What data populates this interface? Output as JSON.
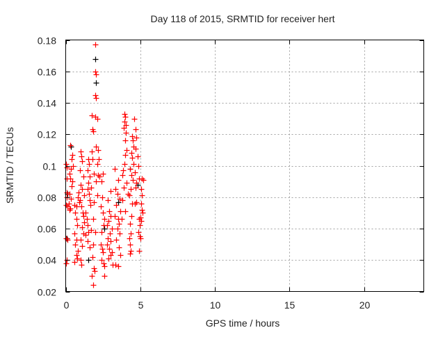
{
  "chart_data": {
    "type": "scatter",
    "title": "Day 118 of 2015, SRMTID for receiver hert",
    "xlabel": "GPS time / hours",
    "ylabel": "SRMTID / TECUs",
    "xlim": [
      0,
      24
    ],
    "ylim": [
      0.02,
      0.18
    ],
    "xticks": [
      0,
      5,
      10,
      15,
      20
    ],
    "xtick_labels": [
      "0",
      "5",
      "10",
      "15",
      "20"
    ],
    "yticks": [
      0.02,
      0.04,
      0.06,
      0.08,
      0.1,
      0.12,
      0.14,
      0.16,
      0.18
    ],
    "ytick_labels": [
      "0.02",
      "0.04",
      "0.06",
      "0.08",
      "0.1",
      "0.12",
      "0.14",
      "0.16",
      "0.18"
    ],
    "grid": true,
    "marker": "+",
    "series": [
      {
        "name": "black",
        "color": "#000000",
        "points": [
          [
            2.0,
            0.168
          ],
          [
            2.05,
            0.153
          ],
          [
            0.35,
            0.112
          ],
          [
            0.1,
            0.082
          ],
          [
            1.5,
            0.04
          ],
          [
            3.5,
            0.077
          ],
          [
            4.3,
            0.098
          ],
          [
            0.05,
            0.054
          ],
          [
            2.6,
            0.06
          ],
          [
            4.8,
            0.088
          ]
        ]
      },
      {
        "name": "red",
        "color": "#ff0000",
        "points": [
          [
            0.02,
            0.101
          ],
          [
            0.05,
            0.092
          ],
          [
            0.08,
            0.083
          ],
          [
            0.03,
            0.075
          ],
          [
            0.1,
            0.074
          ],
          [
            0.02,
            0.054
          ],
          [
            0.1,
            0.053
          ],
          [
            0.05,
            0.04
          ],
          [
            0.03,
            0.038
          ],
          [
            0.07,
            0.08
          ],
          [
            0.09,
            0.099
          ],
          [
            0.3,
            0.113
          ],
          [
            0.45,
            0.107
          ],
          [
            0.4,
            0.104
          ],
          [
            0.5,
            0.1
          ],
          [
            0.35,
            0.098
          ],
          [
            0.25,
            0.095
          ],
          [
            0.3,
            0.092
          ],
          [
            0.45,
            0.09
          ],
          [
            0.4,
            0.087
          ],
          [
            0.25,
            0.082
          ],
          [
            0.35,
            0.079
          ],
          [
            0.2,
            0.076
          ],
          [
            0.3,
            0.073
          ],
          [
            0.25,
            0.072
          ],
          [
            0.6,
            0.075
          ],
          [
            0.65,
            0.07
          ],
          [
            0.7,
            0.066
          ],
          [
            0.75,
            0.062
          ],
          [
            0.6,
            0.057
          ],
          [
            0.7,
            0.053
          ],
          [
            0.65,
            0.05
          ],
          [
            0.8,
            0.046
          ],
          [
            0.7,
            0.043
          ],
          [
            0.75,
            0.041
          ],
          [
            0.6,
            0.039
          ],
          [
            0.85,
            0.083
          ],
          [
            0.8,
            0.08
          ],
          [
            0.9,
            0.077
          ],
          [
            0.7,
            0.074
          ],
          [
            1.0,
            0.109
          ],
          [
            1.05,
            0.106
          ],
          [
            1.1,
            0.103
          ],
          [
            0.95,
            0.097
          ],
          [
            1.2,
            0.093
          ],
          [
            1.0,
            0.088
          ],
          [
            1.1,
            0.085
          ],
          [
            1.25,
            0.081
          ],
          [
            0.95,
            0.078
          ],
          [
            1.05,
            0.074
          ],
          [
            1.15,
            0.07
          ],
          [
            1.2,
            0.068
          ],
          [
            1.25,
            0.064
          ],
          [
            1.1,
            0.061
          ],
          [
            1.2,
            0.057
          ],
          [
            1.0,
            0.053
          ],
          [
            1.1,
            0.049
          ],
          [
            1.0,
            0.04
          ],
          [
            1.05,
            0.037
          ],
          [
            1.35,
            0.07
          ],
          [
            1.4,
            0.066
          ],
          [
            1.45,
            0.062
          ],
          [
            1.5,
            0.058
          ],
          [
            1.35,
            0.056
          ],
          [
            1.45,
            0.052
          ],
          [
            1.6,
            0.048
          ],
          [
            1.5,
            0.104
          ],
          [
            1.55,
            0.101
          ],
          [
            1.45,
            0.097
          ],
          [
            1.6,
            0.093
          ],
          [
            1.5,
            0.089
          ],
          [
            1.45,
            0.085
          ],
          [
            1.55,
            0.082
          ],
          [
            1.6,
            0.078
          ],
          [
            1.65,
            0.075
          ],
          [
            1.75,
            0.132
          ],
          [
            1.8,
            0.123
          ],
          [
            1.85,
            0.122
          ],
          [
            1.75,
            0.109
          ],
          [
            1.8,
            0.104
          ],
          [
            1.9,
            0.095
          ],
          [
            1.7,
            0.086
          ],
          [
            1.9,
            0.077
          ],
          [
            1.85,
            0.066
          ],
          [
            1.7,
            0.059
          ],
          [
            1.85,
            0.05
          ],
          [
            1.8,
            0.042
          ],
          [
            1.9,
            0.035
          ],
          [
            1.95,
            0.033
          ],
          [
            1.75,
            0.03
          ],
          [
            1.85,
            0.024
          ],
          [
            2.0,
            0.177
          ],
          [
            2.0,
            0.16
          ],
          [
            2.05,
            0.158
          ],
          [
            2.0,
            0.145
          ],
          [
            2.05,
            0.143
          ],
          [
            2.0,
            0.131
          ],
          [
            2.1,
            0.13
          ],
          [
            2.05,
            0.112
          ],
          [
            2.15,
            0.11
          ],
          [
            2.2,
            0.104
          ],
          [
            2.1,
            0.101
          ],
          [
            2.15,
            0.094
          ],
          [
            2.25,
            0.093
          ],
          [
            2.05,
            0.09
          ],
          [
            2.1,
            0.081
          ],
          [
            2.0,
            0.058
          ],
          [
            2.5,
            0.095
          ],
          [
            2.4,
            0.09
          ],
          [
            2.45,
            0.08
          ],
          [
            2.35,
            0.074
          ],
          [
            2.5,
            0.07
          ],
          [
            2.6,
            0.066
          ],
          [
            2.55,
            0.062
          ],
          [
            2.4,
            0.058
          ],
          [
            2.35,
            0.05
          ],
          [
            2.45,
            0.047
          ],
          [
            2.5,
            0.045
          ],
          [
            2.4,
            0.04
          ],
          [
            2.55,
            0.038
          ],
          [
            2.6,
            0.036
          ],
          [
            2.6,
            0.03
          ],
          [
            2.9,
            0.071
          ],
          [
            3.0,
            0.068
          ],
          [
            2.85,
            0.065
          ],
          [
            2.75,
            0.062
          ],
          [
            3.1,
            0.06
          ],
          [
            2.95,
            0.057
          ],
          [
            2.8,
            0.054
          ],
          [
            3.0,
            0.052
          ],
          [
            2.75,
            0.05
          ],
          [
            2.9,
            0.047
          ],
          [
            3.1,
            0.045
          ],
          [
            3.0,
            0.043
          ],
          [
            2.85,
            0.041
          ],
          [
            3.15,
            0.037
          ],
          [
            3.0,
            0.084
          ],
          [
            2.8,
            0.078
          ],
          [
            3.3,
            0.098
          ],
          [
            3.5,
            0.091
          ],
          [
            3.35,
            0.085
          ],
          [
            3.45,
            0.082
          ],
          [
            3.6,
            0.079
          ],
          [
            3.4,
            0.075
          ],
          [
            3.65,
            0.071
          ],
          [
            3.3,
            0.068
          ],
          [
            3.5,
            0.066
          ],
          [
            3.55,
            0.063
          ],
          [
            3.45,
            0.06
          ],
          [
            3.6,
            0.057
          ],
          [
            3.4,
            0.053
          ],
          [
            3.55,
            0.048
          ],
          [
            3.65,
            0.043
          ],
          [
            3.35,
            0.037
          ],
          [
            3.5,
            0.036
          ],
          [
            3.95,
            0.133
          ],
          [
            4.0,
            0.131
          ],
          [
            3.95,
            0.128
          ],
          [
            4.05,
            0.126
          ],
          [
            3.9,
            0.124
          ],
          [
            4.05,
            0.121
          ],
          [
            4.0,
            0.116
          ],
          [
            4.1,
            0.11
          ],
          [
            4.0,
            0.107
          ],
          [
            3.95,
            0.101
          ],
          [
            3.85,
            0.097
          ],
          [
            3.8,
            0.094
          ],
          [
            4.1,
            0.089
          ],
          [
            3.9,
            0.086
          ],
          [
            4.15,
            0.082
          ],
          [
            3.8,
            0.078
          ],
          [
            4.0,
            0.071
          ],
          [
            3.75,
            0.066
          ],
          [
            4.45,
            0.119
          ],
          [
            4.5,
            0.116
          ],
          [
            4.55,
            0.112
          ],
          [
            4.4,
            0.108
          ],
          [
            4.45,
            0.105
          ],
          [
            4.55,
            0.101
          ],
          [
            4.3,
            0.098
          ],
          [
            4.4,
            0.094
          ],
          [
            4.5,
            0.091
          ],
          [
            4.35,
            0.085
          ],
          [
            4.25,
            0.081
          ],
          [
            4.45,
            0.076
          ],
          [
            4.4,
            0.068
          ],
          [
            4.3,
            0.063
          ],
          [
            4.35,
            0.057
          ],
          [
            4.25,
            0.054
          ],
          [
            4.3,
            0.05
          ],
          [
            4.35,
            0.046
          ],
          [
            4.3,
            0.044
          ],
          [
            4.6,
            0.13
          ],
          [
            4.7,
            0.123
          ],
          [
            4.75,
            0.118
          ],
          [
            4.7,
            0.111
          ],
          [
            4.8,
            0.106
          ],
          [
            4.85,
            0.1
          ],
          [
            4.65,
            0.096
          ],
          [
            4.9,
            0.092
          ],
          [
            4.75,
            0.089
          ],
          [
            4.7,
            0.086
          ],
          [
            4.75,
            0.077
          ],
          [
            4.65,
            0.076
          ],
          [
            4.9,
            0.066
          ],
          [
            4.95,
            0.062
          ],
          [
            4.85,
            0.058
          ],
          [
            4.95,
            0.055
          ],
          [
            5.0,
            0.054
          ],
          [
            4.9,
            0.046
          ],
          [
            5.1,
            0.092
          ],
          [
            5.2,
            0.091
          ],
          [
            5.05,
            0.085
          ],
          [
            5.1,
            0.081
          ],
          [
            5.05,
            0.076
          ],
          [
            5.1,
            0.072
          ],
          [
            5.15,
            0.07
          ],
          [
            5.0,
            0.067
          ],
          [
            5.05,
            0.065
          ]
        ]
      }
    ]
  }
}
